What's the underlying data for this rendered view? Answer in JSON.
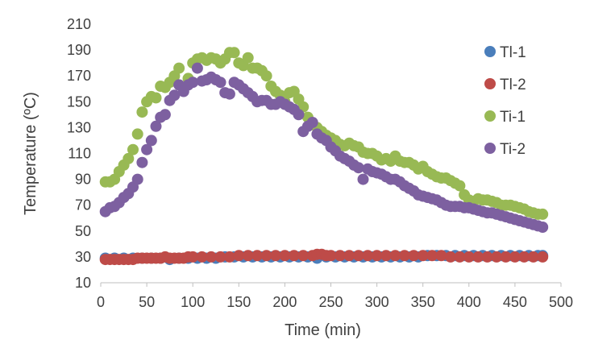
{
  "chart_data": {
    "type": "scatter",
    "title": "",
    "xlabel": "Time (min)",
    "ylabel": "Temperature (ºC)",
    "xlim": [
      0,
      500
    ],
    "ylim": [
      10,
      210
    ],
    "xticks": [
      0,
      50,
      100,
      150,
      200,
      250,
      300,
      350,
      400,
      450,
      500
    ],
    "yticks": [
      10,
      30,
      50,
      70,
      90,
      110,
      130,
      150,
      170,
      190,
      210
    ],
    "xtick_labels": [
      "0",
      "50",
      "100",
      "150",
      "200",
      "250",
      "300",
      "350",
      "400",
      "450",
      "500"
    ],
    "ytick_labels": [
      "10",
      "30",
      "50",
      "70",
      "90",
      "110",
      "130",
      "150",
      "170",
      "190",
      "210"
    ],
    "grid": false,
    "legend_position": "right",
    "series": [
      {
        "name": "Tl-1",
        "color": "#4a7ebb",
        "points": [
          [
            5,
            29
          ],
          [
            15,
            29
          ],
          [
            25,
            29
          ],
          [
            35,
            29
          ],
          [
            45,
            29
          ],
          [
            55,
            29
          ],
          [
            65,
            29
          ],
          [
            75,
            28
          ],
          [
            85,
            29
          ],
          [
            95,
            29
          ],
          [
            105,
            29
          ],
          [
            115,
            29
          ],
          [
            125,
            29
          ],
          [
            135,
            30
          ],
          [
            145,
            30
          ],
          [
            155,
            30
          ],
          [
            165,
            30
          ],
          [
            175,
            30
          ],
          [
            185,
            30
          ],
          [
            195,
            30
          ],
          [
            205,
            30
          ],
          [
            215,
            30
          ],
          [
            225,
            30
          ],
          [
            235,
            29
          ],
          [
            245,
            30
          ],
          [
            255,
            30
          ],
          [
            265,
            30
          ],
          [
            275,
            30
          ],
          [
            285,
            30
          ],
          [
            295,
            30
          ],
          [
            305,
            30
          ],
          [
            315,
            30
          ],
          [
            325,
            30
          ],
          [
            335,
            30
          ],
          [
            345,
            30
          ],
          [
            355,
            31
          ],
          [
            365,
            31
          ],
          [
            375,
            31
          ],
          [
            385,
            31
          ],
          [
            395,
            31
          ],
          [
            405,
            31
          ],
          [
            415,
            31
          ],
          [
            425,
            31
          ],
          [
            435,
            31
          ],
          [
            445,
            31
          ],
          [
            455,
            31
          ],
          [
            465,
            31
          ],
          [
            475,
            31
          ],
          [
            480,
            31
          ]
        ]
      },
      {
        "name": "Tl-2",
        "color": "#be4b48",
        "points": [
          [
            5,
            28
          ],
          [
            10,
            28
          ],
          [
            15,
            28
          ],
          [
            20,
            28
          ],
          [
            25,
            28
          ],
          [
            30,
            28
          ],
          [
            35,
            28
          ],
          [
            40,
            29
          ],
          [
            45,
            29
          ],
          [
            50,
            29
          ],
          [
            55,
            29
          ],
          [
            60,
            29
          ],
          [
            65,
            29
          ],
          [
            70,
            30
          ],
          [
            75,
            29
          ],
          [
            80,
            29
          ],
          [
            85,
            29
          ],
          [
            90,
            29
          ],
          [
            95,
            30
          ],
          [
            100,
            30
          ],
          [
            110,
            30
          ],
          [
            120,
            30
          ],
          [
            130,
            30
          ],
          [
            140,
            30
          ],
          [
            150,
            31
          ],
          [
            160,
            31
          ],
          [
            170,
            31
          ],
          [
            180,
            31
          ],
          [
            190,
            31
          ],
          [
            200,
            31
          ],
          [
            210,
            31
          ],
          [
            220,
            31
          ],
          [
            230,
            31
          ],
          [
            235,
            32
          ],
          [
            240,
            32
          ],
          [
            245,
            31
          ],
          [
            250,
            31
          ],
          [
            260,
            31
          ],
          [
            270,
            31
          ],
          [
            280,
            31
          ],
          [
            290,
            31
          ],
          [
            300,
            31
          ],
          [
            310,
            31
          ],
          [
            320,
            31
          ],
          [
            330,
            31
          ],
          [
            340,
            31
          ],
          [
            350,
            31
          ],
          [
            360,
            31
          ],
          [
            370,
            31
          ],
          [
            380,
            30
          ],
          [
            390,
            30
          ],
          [
            400,
            30
          ],
          [
            410,
            30
          ],
          [
            420,
            30
          ],
          [
            430,
            30
          ],
          [
            440,
            30
          ],
          [
            450,
            30
          ],
          [
            460,
            30
          ],
          [
            470,
            30
          ],
          [
            480,
            30
          ]
        ]
      },
      {
        "name": "Ti-1",
        "color": "#98b954",
        "points": [
          [
            5,
            88
          ],
          [
            10,
            88
          ],
          [
            15,
            90
          ],
          [
            20,
            96
          ],
          [
            25,
            101
          ],
          [
            30,
            106
          ],
          [
            35,
            113
          ],
          [
            40,
            125
          ],
          [
            45,
            142
          ],
          [
            50,
            150
          ],
          [
            55,
            154
          ],
          [
            60,
            153
          ],
          [
            65,
            162
          ],
          [
            70,
            161
          ],
          [
            75,
            165
          ],
          [
            80,
            170
          ],
          [
            85,
            176
          ],
          [
            90,
            160
          ],
          [
            95,
            168
          ],
          [
            100,
            180
          ],
          [
            105,
            183
          ],
          [
            110,
            184
          ],
          [
            115,
            182
          ],
          [
            120,
            184
          ],
          [
            125,
            183
          ],
          [
            130,
            180
          ],
          [
            135,
            183
          ],
          [
            140,
            188
          ],
          [
            145,
            188
          ],
          [
            150,
            180
          ],
          [
            155,
            178
          ],
          [
            160,
            184
          ],
          [
            165,
            176
          ],
          [
            170,
            176
          ],
          [
            175,
            174
          ],
          [
            180,
            170
          ],
          [
            185,
            162
          ],
          [
            190,
            158
          ],
          [
            195,
            155
          ],
          [
            200,
            150
          ],
          [
            205,
            157
          ],
          [
            210,
            158
          ],
          [
            215,
            152
          ],
          [
            220,
            146
          ],
          [
            225,
            138
          ],
          [
            230,
            133
          ],
          [
            235,
            130
          ],
          [
            240,
            127
          ],
          [
            245,
            124
          ],
          [
            250,
            122
          ],
          [
            255,
            120
          ],
          [
            260,
            117
          ],
          [
            265,
            116
          ],
          [
            270,
            118
          ],
          [
            275,
            116
          ],
          [
            280,
            115
          ],
          [
            285,
            111
          ],
          [
            290,
            110
          ],
          [
            295,
            110
          ],
          [
            300,
            108
          ],
          [
            305,
            105
          ],
          [
            310,
            106
          ],
          [
            315,
            104
          ],
          [
            320,
            108
          ],
          [
            325,
            104
          ],
          [
            330,
            103
          ],
          [
            335,
            103
          ],
          [
            340,
            101
          ],
          [
            345,
            98
          ],
          [
            350,
            100
          ],
          [
            355,
            96
          ],
          [
            360,
            94
          ],
          [
            365,
            92
          ],
          [
            370,
            91
          ],
          [
            375,
            91
          ],
          [
            380,
            89
          ],
          [
            385,
            87
          ],
          [
            390,
            85
          ],
          [
            395,
            78
          ],
          [
            400,
            74
          ],
          [
            405,
            73
          ],
          [
            410,
            75
          ],
          [
            415,
            74
          ],
          [
            420,
            74
          ],
          [
            425,
            73
          ],
          [
            430,
            72
          ],
          [
            435,
            70
          ],
          [
            440,
            70
          ],
          [
            445,
            70
          ],
          [
            450,
            69
          ],
          [
            455,
            68
          ],
          [
            460,
            67
          ],
          [
            465,
            65
          ],
          [
            470,
            64
          ],
          [
            475,
            63
          ],
          [
            480,
            63
          ]
        ]
      },
      {
        "name": "Ti-2",
        "color": "#7d60a0",
        "points": [
          [
            5,
            65
          ],
          [
            10,
            68
          ],
          [
            15,
            69
          ],
          [
            20,
            72
          ],
          [
            25,
            76
          ],
          [
            30,
            79
          ],
          [
            35,
            84
          ],
          [
            40,
            90
          ],
          [
            45,
            103
          ],
          [
            50,
            113
          ],
          [
            55,
            120
          ],
          [
            60,
            131
          ],
          [
            65,
            138
          ],
          [
            70,
            140
          ],
          [
            75,
            151
          ],
          [
            80,
            155
          ],
          [
            85,
            163
          ],
          [
            90,
            158
          ],
          [
            95,
            163
          ],
          [
            100,
            165
          ],
          [
            105,
            176
          ],
          [
            110,
            166
          ],
          [
            115,
            167
          ],
          [
            120,
            169
          ],
          [
            125,
            167
          ],
          [
            130,
            165
          ],
          [
            135,
            157
          ],
          [
            140,
            156
          ],
          [
            145,
            165
          ],
          [
            150,
            163
          ],
          [
            155,
            160
          ],
          [
            160,
            157
          ],
          [
            165,
            154
          ],
          [
            170,
            150
          ],
          [
            175,
            151
          ],
          [
            180,
            151
          ],
          [
            185,
            148
          ],
          [
            190,
            148
          ],
          [
            195,
            150
          ],
          [
            200,
            148
          ],
          [
            205,
            146
          ],
          [
            210,
            144
          ],
          [
            215,
            140
          ],
          [
            220,
            127
          ],
          [
            225,
            131
          ],
          [
            230,
            134
          ],
          [
            235,
            125
          ],
          [
            240,
            122
          ],
          [
            245,
            120
          ],
          [
            250,
            115
          ],
          [
            255,
            112
          ],
          [
            260,
            108
          ],
          [
            265,
            106
          ],
          [
            270,
            104
          ],
          [
            275,
            101
          ],
          [
            280,
            99
          ],
          [
            285,
            90
          ],
          [
            290,
            98
          ],
          [
            295,
            96
          ],
          [
            300,
            95
          ],
          [
            305,
            94
          ],
          [
            310,
            92
          ],
          [
            315,
            90
          ],
          [
            320,
            90
          ],
          [
            325,
            88
          ],
          [
            330,
            85
          ],
          [
            335,
            83
          ],
          [
            340,
            81
          ],
          [
            345,
            78
          ],
          [
            350,
            77
          ],
          [
            355,
            76
          ],
          [
            360,
            75
          ],
          [
            365,
            74
          ],
          [
            370,
            72
          ],
          [
            375,
            70
          ],
          [
            380,
            69
          ],
          [
            385,
            69
          ],
          [
            390,
            69
          ],
          [
            395,
            68
          ],
          [
            400,
            68
          ],
          [
            405,
            67
          ],
          [
            410,
            66
          ],
          [
            415,
            65
          ],
          [
            420,
            64
          ],
          [
            425,
            64
          ],
          [
            430,
            63
          ],
          [
            435,
            62
          ],
          [
            440,
            61
          ],
          [
            445,
            60
          ],
          [
            450,
            59
          ],
          [
            455,
            58
          ],
          [
            460,
            57
          ],
          [
            465,
            56
          ],
          [
            470,
            55
          ],
          [
            475,
            54
          ],
          [
            480,
            53
          ]
        ]
      }
    ]
  }
}
